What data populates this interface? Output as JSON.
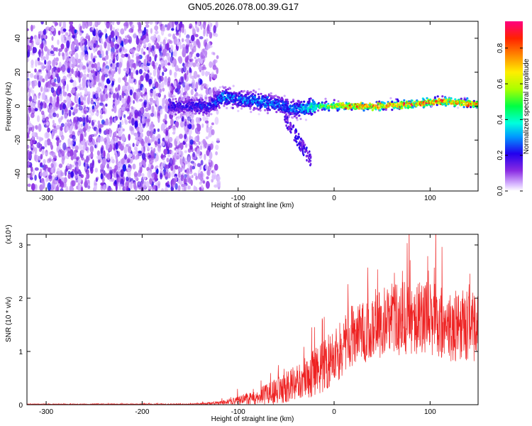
{
  "title": "GN05.2026.078.00.39.G17",
  "chart_data": [
    {
      "type": "heatmap",
      "xlabel": "Height of straight line (km)",
      "ylabel": "Frequency (Hz)",
      "xlim": [
        -320,
        150
      ],
      "ylim": [
        -50,
        50
      ],
      "xticks": [
        -300,
        -200,
        -100,
        0,
        100
      ],
      "yticks": [
        -40,
        -20,
        0,
        20,
        40
      ],
      "colorbar": {
        "label": "Normalized spectral amplitude",
        "range": [
          0,
          0.95
        ],
        "ticks": [
          0.0,
          0.2,
          0.4,
          0.6,
          0.8
        ]
      },
      "signal_track": {
        "description_points_height_km": [
          -170,
          -130,
          -115,
          -100,
          -80,
          -60,
          -40,
          -20,
          0,
          40,
          80,
          110,
          150
        ],
        "center_frequency_hz": [
          0,
          0,
          6,
          4,
          3,
          1,
          -2,
          0,
          0,
          0,
          1,
          3,
          1
        ],
        "peak_amplitude": [
          0.2,
          0.25,
          0.35,
          0.3,
          0.35,
          0.3,
          0.3,
          0.5,
          0.75,
          0.9,
          0.9,
          0.9,
          0.8
        ]
      }
    },
    {
      "type": "line",
      "xlabel": "Height of straight line (km)",
      "ylabel": "SNR (10 * v/v)",
      "yscale_label": "(x10⁴)",
      "xlim": [
        -320,
        150
      ],
      "ylim": [
        0,
        3.2
      ],
      "xticks": [
        -300,
        -200,
        -100,
        0,
        100
      ],
      "yticks": [
        0,
        1,
        2,
        3
      ],
      "color": "#ee2222",
      "envelope": {
        "x": [
          -320,
          -150,
          -120,
          -100,
          -80,
          -60,
          -40,
          -20,
          0,
          20,
          40,
          60,
          80,
          100,
          120,
          150
        ],
        "mean": [
          0.01,
          0.01,
          0.03,
          0.08,
          0.15,
          0.25,
          0.4,
          0.6,
          0.9,
          1.3,
          1.5,
          1.6,
          1.65,
          1.6,
          1.5,
          1.45
        ],
        "spread": [
          0.005,
          0.01,
          0.03,
          0.08,
          0.15,
          0.25,
          0.35,
          0.45,
          0.55,
          0.6,
          0.65,
          0.7,
          0.7,
          0.7,
          0.7,
          0.65
        ]
      }
    }
  ]
}
